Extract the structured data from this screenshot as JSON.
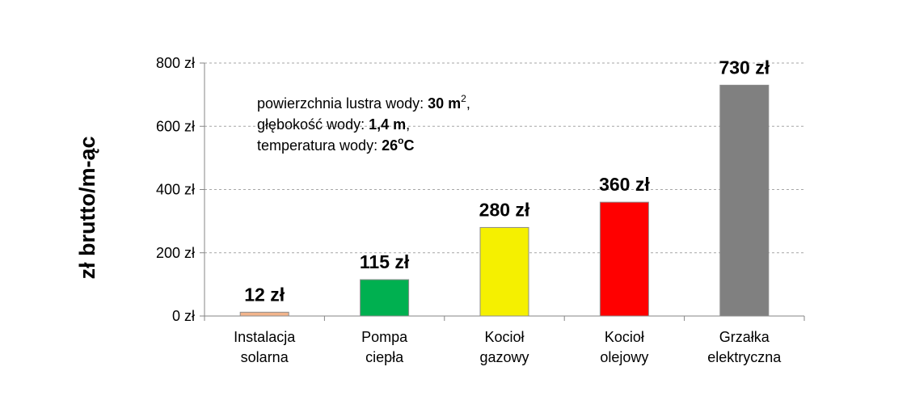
{
  "chart_data": {
    "type": "bar",
    "ylabel": "zł brutto/m-ąc",
    "categories": [
      [
        "Instalacja",
        "solarna"
      ],
      [
        "Pompa",
        "ciepła"
      ],
      [
        "Kocioł",
        "gazowy"
      ],
      [
        "Kocioł",
        "olejowy"
      ],
      [
        "Grzałka",
        "elektryczna"
      ]
    ],
    "values": [
      12,
      115,
      280,
      360,
      730
    ],
    "value_labels": [
      "12 zł",
      "115 zł",
      "280 zł",
      "360 zł",
      "730 zł"
    ],
    "bar_colors": [
      "#f2b48b",
      "#00b050",
      "#f5f000",
      "#ff0000",
      "#808080"
    ],
    "ylim": [
      0,
      800
    ],
    "yticks": [
      0,
      200,
      400,
      600,
      800
    ],
    "ytick_labels": [
      "0 zł",
      "200 zł",
      "400 zł",
      "600 zł",
      "800 zł"
    ],
    "grid": true,
    "legend": "none",
    "annotation": {
      "line1": {
        "text": "powierzchnia  lustra  wody: ",
        "bold": "30 m",
        "sup": "2",
        "tail": ","
      },
      "line2": {
        "text": "głębokość  wody: ",
        "bold": "1,4 m",
        "sup": "",
        "tail": ","
      },
      "line3": {
        "text": "temperatura  wody: ",
        "bold": "26",
        "sup": "o",
        "tail": "C"
      }
    }
  }
}
